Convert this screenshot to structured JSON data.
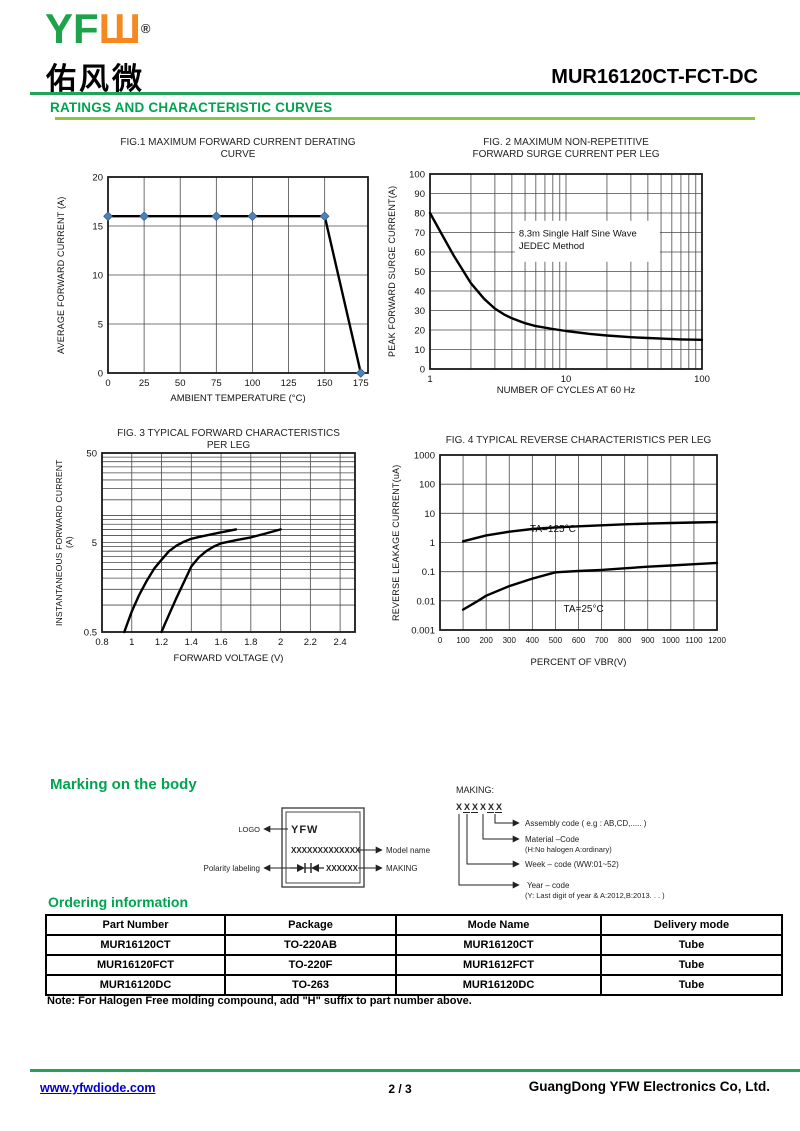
{
  "header": {
    "logo_green": "YF",
    "logo_orange": "Ш",
    "logo_reg": "®",
    "logo_chinese": "佑风微",
    "part_number": "MUR16120CT-FCT-DC",
    "section_title": "RATINGS AND CHARACTERISTIC CURVES"
  },
  "chart_data": [
    {
      "type": "line",
      "title1": "FIG.1 MAXIMUM FORWARD CURRENT DERATING",
      "title2": "CURVE",
      "xlabel": "AMBIENT TEMPERATURE (°C)",
      "ylabel": "AVERAGE FORWARD CURRENT (A)",
      "xscale": "linear",
      "yscale": "linear",
      "xlim": [
        0,
        180
      ],
      "ylim": [
        0,
        20
      ],
      "xticks": [
        0,
        25,
        50,
        75,
        100,
        125,
        150,
        175
      ],
      "xtick_labels": [
        "0",
        "25",
        "50",
        "75",
        "100",
        "125",
        "150",
        "175"
      ],
      "yticks": [
        0,
        5,
        10,
        15,
        20
      ],
      "ytick_labels": [
        "0",
        "5",
        "10",
        "15",
        "20"
      ],
      "xgrid": [
        25,
        50,
        75,
        100,
        125,
        150
      ],
      "ygrid": [
        5,
        10,
        15
      ],
      "series": [
        {
          "name": "average-forward-current",
          "points": [
            [
              0,
              16
            ],
            [
              150,
              16
            ],
            [
              175,
              0
            ]
          ]
        }
      ],
      "markers": {
        "color": "#4f81bd",
        "points": [
          [
            0,
            16
          ],
          [
            25,
            16
          ],
          [
            75,
            16
          ],
          [
            100,
            16
          ],
          [
            150,
            16
          ],
          [
            175,
            0
          ]
        ]
      }
    },
    {
      "type": "line",
      "title1": "FIG. 2 MAXIMUM NON-REPETITIVE",
      "title2": "FORWARD SURGE CURRENT PER LEG",
      "xlabel": "NUMBER OF CYCLES AT 60 Hz",
      "ylabel": "PEAK FORWARD SURGE CURRENT(A)",
      "xscale": "log",
      "yscale": "linear",
      "xlim": [
        1,
        100
      ],
      "ylim": [
        0,
        100
      ],
      "xticks": [
        1,
        10,
        100
      ],
      "xtick_labels": [
        "1",
        "10",
        "100"
      ],
      "yticks": [
        0,
        10,
        20,
        30,
        40,
        50,
        60,
        70,
        80,
        90,
        100
      ],
      "ytick_labels": [
        "0",
        "10",
        "20",
        "30",
        "40",
        "50",
        "60",
        "70",
        "80",
        "90",
        "100"
      ],
      "xgrid": [
        2,
        3,
        4,
        5,
        6,
        7,
        8,
        9,
        10,
        20,
        30,
        40,
        50,
        60,
        70,
        80,
        90
      ],
      "ygrid": [
        10,
        20,
        30,
        40,
        50,
        60,
        70,
        80,
        90
      ],
      "note_box": {
        "x1": 4.2,
        "x2": 49,
        "y1": 55,
        "y2": 76,
        "lines": [
          "8.3m Single Half Sine Wave",
          "JEDEC Method"
        ],
        "text_x": 4.5,
        "text_y": [
          68,
          61.5
        ]
      },
      "series": [
        {
          "name": "peak-surge-current",
          "points": [
            [
              1,
              80
            ],
            [
              1.2,
              70
            ],
            [
              1.5,
              58
            ],
            [
              2,
              44
            ],
            [
              2.5,
              36
            ],
            [
              3,
              31
            ],
            [
              3.5,
              28
            ],
            [
              4,
              26
            ],
            [
              5,
              23.5
            ],
            [
              6,
              22
            ],
            [
              8,
              20.5
            ],
            [
              10,
              19.5
            ],
            [
              15,
              18
            ],
            [
              20,
              17.2
            ],
            [
              30,
              16.3
            ],
            [
              40,
              15.9
            ],
            [
              50,
              15.6
            ],
            [
              70,
              15.2
            ],
            [
              100,
              15
            ]
          ]
        }
      ]
    },
    {
      "type": "line",
      "title1": "FIG. 3 TYPICAL FORWARD CHARACTERISTICS",
      "title2": "PER LEG",
      "xlabel": "FORWARD VOLTAGE (V)",
      "ylabel": "INSTANTANEOUS FORWARD CURRENT (A)",
      "xscale": "linear",
      "yscale": "log",
      "xlim": [
        0.8,
        2.5
      ],
      "ylim": [
        0.5,
        50
      ],
      "xticks": [
        0.8,
        1,
        1.2,
        1.4,
        1.6,
        1.8,
        2,
        2.2,
        2.4
      ],
      "xtick_labels": [
        "0.8",
        "1",
        "1.2",
        "1.4",
        "1.6",
        "1.8",
        "2",
        "2.2",
        "2.4"
      ],
      "yticks": [
        0.5,
        5,
        50
      ],
      "ytick_labels": [
        "0.5",
        "5",
        "50"
      ],
      "xgrid": [
        1,
        1.2,
        1.4,
        1.6,
        1.8,
        2,
        2.2,
        2.4
      ],
      "ygrid": [
        1,
        1.5,
        2,
        2.5,
        3,
        3.5,
        4,
        4.5,
        5,
        6,
        7,
        8,
        9,
        10,
        15,
        20,
        25,
        30,
        35,
        40,
        45
      ],
      "series": [
        {
          "name": "curve-left",
          "points": [
            [
              0.95,
              0.5
            ],
            [
              0.97,
              0.62
            ],
            [
              1.0,
              0.85
            ],
            [
              1.05,
              1.3
            ],
            [
              1.1,
              1.85
            ],
            [
              1.15,
              2.55
            ],
            [
              1.2,
              3.2
            ],
            [
              1.25,
              4.0
            ],
            [
              1.3,
              4.6
            ],
            [
              1.35,
              5.1
            ],
            [
              1.4,
              5.5
            ],
            [
              1.45,
              5.75
            ],
            [
              1.5,
              6.0
            ],
            [
              1.6,
              6.5
            ],
            [
              1.7,
              7.0
            ]
          ]
        },
        {
          "name": "curve-right",
          "points": [
            [
              1.2,
              0.5
            ],
            [
              1.22,
              0.6
            ],
            [
              1.25,
              0.78
            ],
            [
              1.3,
              1.2
            ],
            [
              1.35,
              1.8
            ],
            [
              1.4,
              2.7
            ],
            [
              1.45,
              3.4
            ],
            [
              1.5,
              4.0
            ],
            [
              1.55,
              4.5
            ],
            [
              1.6,
              4.9
            ],
            [
              1.7,
              5.3
            ],
            [
              1.8,
              5.7
            ],
            [
              1.9,
              6.3
            ],
            [
              2.0,
              7.0
            ]
          ]
        }
      ]
    },
    {
      "type": "line",
      "title1": "FIG. 4 TYPICAL REVERSE CHARACTERISTICS PER LEG",
      "title2": "",
      "xlabel": "PERCENT OF VBR(V)",
      "ylabel": "REVERSE LEAKAGE CURRENT(uA)",
      "xscale": "linear",
      "yscale": "log",
      "xlim": [
        0,
        1200
      ],
      "ylim": [
        0.001,
        1000
      ],
      "xticks": [
        0,
        100,
        200,
        300,
        400,
        500,
        600,
        700,
        800,
        900,
        1000,
        1100,
        1200
      ],
      "xtick_labels": [
        "0",
        "100",
        "200",
        "300",
        "400",
        "500",
        "600",
        "700",
        "800",
        "900",
        "1000",
        "1100",
        "1200"
      ],
      "yticks": [
        1000,
        100,
        10,
        1,
        0.1,
        0.01,
        0.001
      ],
      "ytick_labels": [
        "1000",
        "100",
        "10",
        "1",
        "0.1",
        "0.01",
        "0.001"
      ],
      "xgrid": [
        100,
        200,
        300,
        400,
        500,
        600,
        700,
        800,
        900,
        1000,
        1100
      ],
      "ygrid": [
        100,
        10,
        1,
        0.1,
        0.01
      ],
      "annotations": [
        {
          "text": "TA=125°C",
          "x": 390,
          "y": 2.3
        },
        {
          "text": "TA=25°C",
          "x": 535,
          "y": 0.0042
        }
      ],
      "series": [
        {
          "name": "TA=125°C",
          "points": [
            [
              100,
              1.1
            ],
            [
              200,
              1.75
            ],
            [
              300,
              2.35
            ],
            [
              400,
              2.9
            ],
            [
              500,
              3.3
            ],
            [
              600,
              3.6
            ],
            [
              700,
              3.9
            ],
            [
              800,
              4.2
            ],
            [
              900,
              4.45
            ],
            [
              1000,
              4.65
            ],
            [
              1100,
              4.85
            ],
            [
              1200,
              5.0
            ]
          ]
        },
        {
          "name": "TA=25°C",
          "points": [
            [
              100,
              0.005
            ],
            [
              165,
              0.01
            ],
            [
              200,
              0.015
            ],
            [
              300,
              0.032
            ],
            [
              400,
              0.058
            ],
            [
              500,
              0.095
            ],
            [
              600,
              0.105
            ],
            [
              700,
              0.115
            ],
            [
              800,
              0.13
            ],
            [
              900,
              0.148
            ],
            [
              1000,
              0.163
            ],
            [
              1100,
              0.18
            ],
            [
              1200,
              0.2
            ]
          ]
        }
      ]
    }
  ],
  "marking": {
    "heading": "Marking on the body",
    "logo_label": "LOGO",
    "box_logo_text": "YFW",
    "model_x": "XXXXXXXXXXXXX",
    "model_label": "Model name",
    "polarity_label": "Polarity labeling",
    "making_x": "XXXXXX",
    "making_label": "MAKING",
    "making_title": "MAKING:",
    "code_chars": [
      "X",
      "X",
      "X",
      "X",
      "X",
      "X"
    ],
    "legend": [
      {
        "label": "Assembly code ( e.g : AB,CD,..... )",
        "label2": ""
      },
      {
        "label": "Material –Code",
        "label2": "(H:No halogen   A:ordinary)"
      },
      {
        "label": "Week – code (WW:01~52)",
        "label2": ""
      },
      {
        "label": "Year – code",
        "label2": "(Y: Last digit of year & A:2012,B:2013. . . )"
      }
    ]
  },
  "ordering": {
    "heading": "Ordering information",
    "columns": [
      "Part Number",
      "Package",
      "Mode Name",
      "Delivery mode"
    ],
    "rows": [
      [
        "MUR16120CT",
        "TO-220AB",
        "MUR16120CT",
        "Tube"
      ],
      [
        "MUR16120FCT",
        "TO-220F",
        "MUR1612FCT",
        "Tube"
      ],
      [
        "MUR16120DC",
        "TO-263",
        "MUR16120DC",
        "Tube"
      ]
    ],
    "note": "Note: For Halogen Free molding compound, add \"H\" suffix to part number above."
  },
  "footer": {
    "website": "www.yfwdiode.com",
    "page": "2 / 3",
    "company": "GuangDong YFW Electronics Co, Ltd."
  },
  "colors": {
    "heading_green": "#00a44f",
    "rule_green": "#21a45a",
    "underline_green": "#8cc63e",
    "logo_green": "#1fa34a",
    "logo_orange": "#f5891f",
    "link_blue": "#0000cc",
    "marker_blue": "#4f81bd"
  }
}
